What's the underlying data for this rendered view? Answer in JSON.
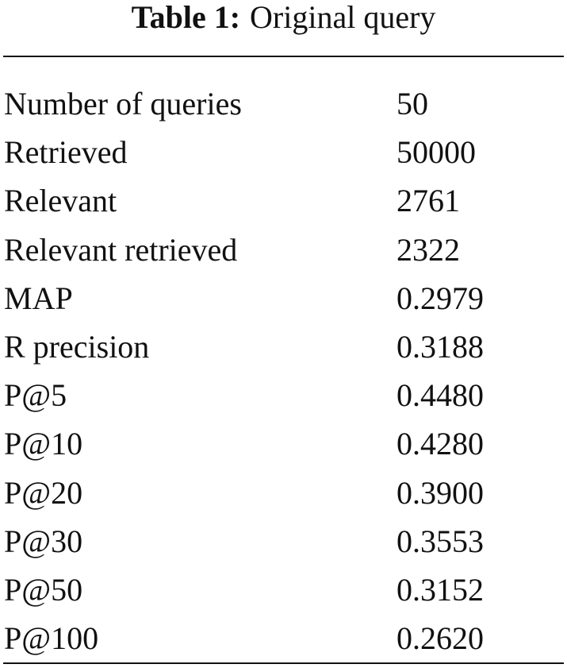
{
  "table": {
    "label": "Table 1:",
    "caption": "Original query",
    "rows": [
      [
        "Number of queries",
        "50"
      ],
      [
        "Retrieved",
        "50000"
      ],
      [
        "Relevant",
        "2761"
      ],
      [
        "Relevant retrieved",
        "2322"
      ],
      [
        "MAP",
        "0.2979"
      ],
      [
        "R precision",
        "0.3188"
      ],
      [
        "P@5",
        "0.4480"
      ],
      [
        "P@10",
        "0.4280"
      ],
      [
        "P@20",
        "0.3900"
      ],
      [
        "P@30",
        "0.3553"
      ],
      [
        "P@50",
        "0.3152"
      ],
      [
        "P@100",
        "0.2620"
      ]
    ]
  }
}
